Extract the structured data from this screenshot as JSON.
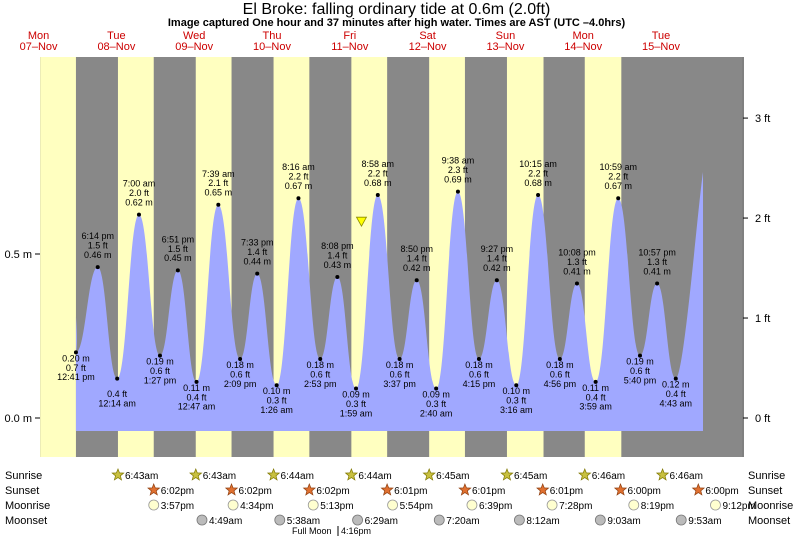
{
  "title": "El Broke: falling  ordinary tide at 0.6m (2.0ft)",
  "subtitle": "Image captured One hour and 37 minutes after high water. Times are AST (UTC –4.0hrs)",
  "colors": {
    "night": "#888888",
    "day": "#ffffc0",
    "water": "#a0a8ff",
    "day_label": "#cc0000"
  },
  "days": [
    {
      "dow": "Mon",
      "date": "07–Nov",
      "x": -0.5
    },
    {
      "dow": "Tue",
      "date": "08–Nov",
      "x": 0.5
    },
    {
      "dow": "Wed",
      "date": "09–Nov",
      "x": 1.5
    },
    {
      "dow": "Thu",
      "date": "10–Nov",
      "x": 2.5
    },
    {
      "dow": "Fri",
      "date": "11–Nov",
      "x": 3.5
    },
    {
      "dow": "Sat",
      "date": "12–Nov",
      "x": 4.5
    },
    {
      "dow": "Sun",
      "date": "13–Nov",
      "x": 5.5
    },
    {
      "dow": "Mon",
      "date": "14–Nov",
      "x": 6.5
    },
    {
      "dow": "Tue",
      "date": "15–Nov",
      "x": 7.5
    }
  ],
  "left_axis": {
    "unit": "m",
    "ticks": [
      {
        "v": 0,
        "label": "0.0 m"
      },
      {
        "v": 0.5,
        "label": "0.5 m"
      }
    ]
  },
  "right_axis": {
    "unit": "ft",
    "ticks": [
      {
        "v": 0,
        "label": "0 ft"
      },
      {
        "v": 1,
        "label": "1 ft"
      },
      {
        "v": 2,
        "label": "2 ft"
      },
      {
        "v": 3,
        "label": "3 ft"
      }
    ]
  },
  "chart_data": {
    "type": "area",
    "title": "El Broke: falling  ordinary tide at 0.6m (2.0ft)",
    "ylim_m": [
      -0.08,
      0.87
    ],
    "current_level_m": 0.6,
    "current_marker_x": 3.65,
    "series": [
      {
        "x": -0.02,
        "time": "12:41 pm",
        "m": "0.20 m",
        "ft": "0.7 ft",
        "v": 0.2,
        "type": "low"
      },
      {
        "x": 0.26,
        "time": "6:14 pm",
        "m": "0.46 m",
        "ft": "1.5 ft",
        "v": 0.46,
        "type": "high"
      },
      {
        "x": 0.51,
        "time": "12:14 am",
        "m": "",
        "ft": "0.4 ft",
        "v": 0.12,
        "type": "low"
      },
      {
        "x": 0.79,
        "time": "7:00 am",
        "m": "0.62 m",
        "ft": "2.0 ft",
        "v": 0.62,
        "type": "high"
      },
      {
        "x": 1.06,
        "time": "1:27 pm",
        "m": "0.19 m",
        "ft": "0.6 ft",
        "v": 0.19,
        "type": "low"
      },
      {
        "x": 1.29,
        "time": "6:51 pm",
        "m": "0.45 m",
        "ft": "1.5 ft",
        "v": 0.45,
        "type": "high"
      },
      {
        "x": 1.53,
        "time": "12:47 am",
        "m": "0.11 m",
        "ft": "0.4 ft",
        "v": 0.11,
        "type": "low"
      },
      {
        "x": 1.81,
        "time": "7:39 am",
        "m": "0.65 m",
        "ft": "2.1 ft",
        "v": 0.65,
        "type": "high"
      },
      {
        "x": 2.09,
        "time": "2:09 pm",
        "m": "0.18 m",
        "ft": "0.6 ft",
        "v": 0.18,
        "type": "low"
      },
      {
        "x": 2.31,
        "time": "7:33 pm",
        "m": "0.44 m",
        "ft": "1.4 ft",
        "v": 0.44,
        "type": "high"
      },
      {
        "x": 2.56,
        "time": "1:26 am",
        "m": "0.10 m",
        "ft": "0.3 ft",
        "v": 0.1,
        "type": "low"
      },
      {
        "x": 2.84,
        "time": "8:16 am",
        "m": "0.67 m",
        "ft": "2.2 ft",
        "v": 0.67,
        "type": "high"
      },
      {
        "x": 3.12,
        "time": "2:53 pm",
        "m": "0.18 m",
        "ft": "0.6 ft",
        "v": 0.18,
        "type": "low"
      },
      {
        "x": 3.34,
        "time": "8:08 pm",
        "m": "0.43 m",
        "ft": "1.4 ft",
        "v": 0.43,
        "type": "high"
      },
      {
        "x": 3.58,
        "time": "1:59 am",
        "m": "0.09 m",
        "ft": "0.3 ft",
        "v": 0.09,
        "type": "low"
      },
      {
        "x": 3.86,
        "time": "8:58 am",
        "m": "0.68 m",
        "ft": "2.2 ft",
        "v": 0.68,
        "type": "high"
      },
      {
        "x": 4.14,
        "time": "3:37 pm",
        "m": "0.18 m",
        "ft": "0.6 ft",
        "v": 0.18,
        "type": "low"
      },
      {
        "x": 4.36,
        "time": "8:50 pm",
        "m": "0.42 m",
        "ft": "1.4 ft",
        "v": 0.42,
        "type": "high"
      },
      {
        "x": 4.61,
        "time": "2:40 am",
        "m": "0.09 m",
        "ft": "0.3 ft",
        "v": 0.09,
        "type": "low"
      },
      {
        "x": 4.89,
        "time": "9:38 am",
        "m": "0.69 m",
        "ft": "2.3 ft",
        "v": 0.69,
        "type": "high"
      },
      {
        "x": 5.16,
        "time": "4:15 pm",
        "m": "0.18 m",
        "ft": "0.6 ft",
        "v": 0.18,
        "type": "low"
      },
      {
        "x": 5.39,
        "time": "9:27 pm",
        "m": "0.42 m",
        "ft": "1.4 ft",
        "v": 0.42,
        "type": "high"
      },
      {
        "x": 5.64,
        "time": "3:16 am",
        "m": "0.10 m",
        "ft": "0.3 ft",
        "v": 0.1,
        "type": "low"
      },
      {
        "x": 5.92,
        "time": "10:15 am",
        "m": "0.68 m",
        "ft": "2.2 ft",
        "v": 0.68,
        "type": "high"
      },
      {
        "x": 6.2,
        "time": "4:56 pm",
        "m": "0.18 m",
        "ft": "0.6 ft",
        "v": 0.18,
        "type": "low"
      },
      {
        "x": 6.42,
        "time": "10:08 pm",
        "m": "0.41 m",
        "ft": "1.3 ft",
        "v": 0.41,
        "type": "high"
      },
      {
        "x": 6.66,
        "time": "3:59 am",
        "m": "0.11 m",
        "ft": "0.4 ft",
        "v": 0.11,
        "type": "low"
      },
      {
        "x": 6.95,
        "time": "10:59 am",
        "m": "0.67 m",
        "ft": "2.2 ft",
        "v": 0.67,
        "type": "high"
      },
      {
        "x": 7.23,
        "time": "5:40 pm",
        "m": "0.19 m",
        "ft": "0.6 ft",
        "v": 0.19,
        "type": "low"
      },
      {
        "x": 7.45,
        "time": "10:57 pm",
        "m": "0.41 m",
        "ft": "1.3 ft",
        "v": 0.41,
        "type": "high"
      },
      {
        "x": 7.69,
        "time": "4:43 am",
        "m": "0.12 m",
        "ft": "0.4 ft",
        "v": 0.12,
        "type": "low"
      }
    ],
    "daylight": [
      [
        -0.48,
        -0.02
      ],
      [
        0.52,
        0.98
      ],
      [
        1.52,
        1.98
      ],
      [
        2.52,
        2.98
      ],
      [
        3.52,
        3.98
      ],
      [
        4.52,
        4.98
      ],
      [
        5.52,
        5.99
      ],
      [
        6.52,
        6.99
      ]
    ]
  },
  "almanac": {
    "row_labels": [
      "Sunrise",
      "Sunset",
      "Moonrise",
      "Moonset"
    ],
    "sunrise": [
      {
        "x": 0.52,
        "t": "6:43am"
      },
      {
        "x": 1.52,
        "t": "6:43am"
      },
      {
        "x": 2.52,
        "t": "6:44am"
      },
      {
        "x": 3.52,
        "t": "6:44am"
      },
      {
        "x": 4.52,
        "t": "6:45am"
      },
      {
        "x": 5.52,
        "t": "6:45am"
      },
      {
        "x": 6.52,
        "t": "6:46am"
      },
      {
        "x": 7.52,
        "t": "6:46am"
      }
    ],
    "sunset": [
      {
        "x": 0.98,
        "t": "6:02pm"
      },
      {
        "x": 1.98,
        "t": "6:02pm"
      },
      {
        "x": 2.98,
        "t": "6:02pm"
      },
      {
        "x": 3.98,
        "t": "6:01pm"
      },
      {
        "x": 4.98,
        "t": "6:01pm"
      },
      {
        "x": 5.98,
        "t": "6:01pm"
      },
      {
        "x": 6.98,
        "t": "6:00pm"
      },
      {
        "x": 7.98,
        "t": "6:00pm"
      }
    ],
    "moonrise": [
      {
        "x": 0.98,
        "t": "3:57pm"
      },
      {
        "x": 2.0,
        "t": "4:34pm"
      },
      {
        "x": 3.03,
        "t": "5:13pm"
      },
      {
        "x": 4.05,
        "t": "5:54pm"
      },
      {
        "x": 5.07,
        "t": "6:39pm"
      },
      {
        "x": 6.1,
        "t": "7:28pm"
      },
      {
        "x": 7.15,
        "t": "8:19pm"
      },
      {
        "x": 8.2,
        "t": "9:12pm"
      }
    ],
    "moonset": [
      {
        "x": 1.6,
        "t": "4:49am"
      },
      {
        "x": 2.6,
        "t": "5:38am"
      },
      {
        "x": 3.6,
        "t": "6:29am"
      },
      {
        "x": 4.65,
        "t": "7:20am"
      },
      {
        "x": 5.68,
        "t": "8:12am"
      },
      {
        "x": 6.72,
        "t": "9:03am"
      },
      {
        "x": 7.76,
        "t": "9:53am"
      }
    ],
    "full_moon": "Full Moon",
    "full_moon_time": "4:16pm"
  }
}
